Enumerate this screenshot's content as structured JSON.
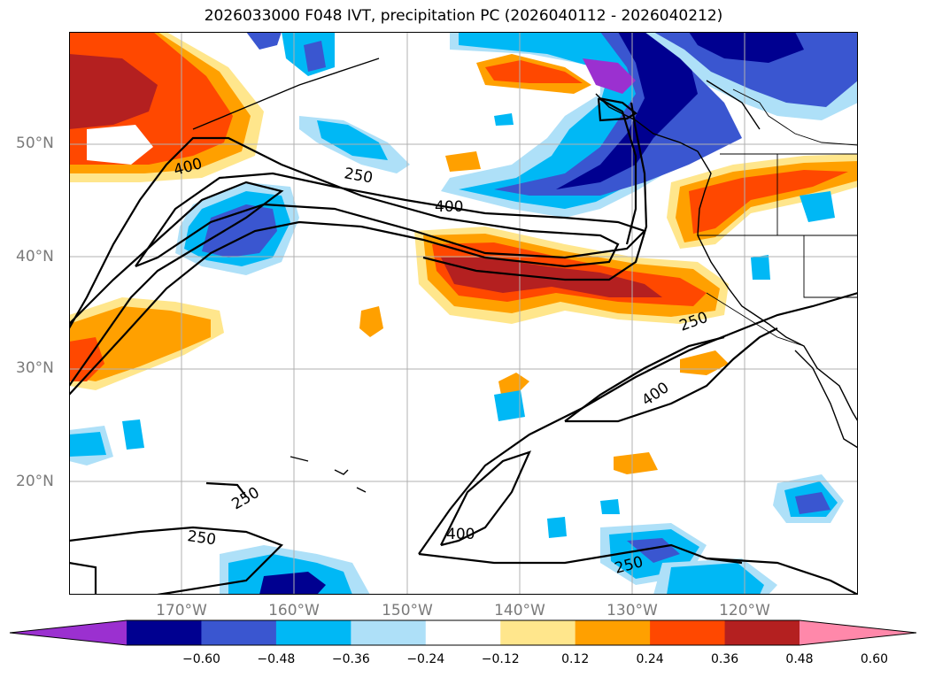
{
  "title": "2026033000 F048 IVT, precipitation PC (2026040112 - 2026040212)",
  "lat_labels": [
    "50°N",
    "40°N",
    "30°N",
    "20°N"
  ],
  "lon_labels": [
    "170°W",
    "160°W",
    "150°W",
    "140°W",
    "130°W",
    "120°W"
  ],
  "contour_labels": [
    "400",
    "250",
    "400",
    "250",
    "400",
    "250",
    "250",
    "400",
    "250"
  ],
  "colorbar": {
    "ticks": [
      "−0.60",
      "−0.48",
      "−0.36",
      "−0.24",
      "−0.12",
      "0.12",
      "0.24",
      "0.36",
      "0.48",
      "0.60"
    ],
    "colors": [
      "#9b30d0",
      "#000090",
      "#3a56d0",
      "#00b8f5",
      "#aee0f8",
      "#ffffff",
      "#ffe68c",
      "#ffa000",
      "#ff4800",
      "#b42020",
      "#ff88aa"
    ]
  }
}
